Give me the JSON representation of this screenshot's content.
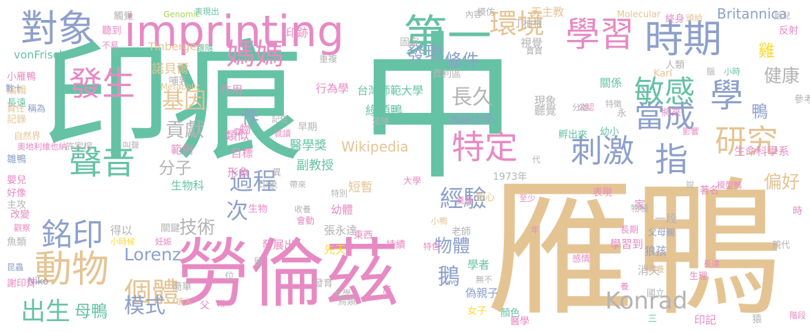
{
  "palette": {
    "green": "#66c2a5",
    "pink": "#e78ac3",
    "blue": "#8da0cb",
    "tan": "#e5c494",
    "gray": "#b3b3b3",
    "yellow": "#ffd92f",
    "lime": "#a6d854",
    "orange": "#fc8d62"
  },
  "words": [
    {
      "t": "印痕",
      "c": "green"
    },
    {
      "t": "中",
      "c": "green"
    },
    {
      "t": "雁鴨",
      "c": "tan"
    },
    {
      "t": "勞倫茲",
      "c": "pink"
    },
    {
      "t": "imprinting",
      "c": "pink"
    },
    {
      "t": "對象",
      "c": "blue"
    },
    {
      "t": "第一",
      "c": "green"
    },
    {
      "t": "學習",
      "c": "pink"
    },
    {
      "t": "時期",
      "c": "blue"
    },
    {
      "t": "環境",
      "c": "tan"
    },
    {
      "t": "發現",
      "c": "blue"
    },
    {
      "t": "媽媽",
      "c": "pink"
    },
    {
      "t": "條件",
      "c": "blue"
    },
    {
      "t": "發生",
      "c": "pink"
    },
    {
      "t": "特定",
      "c": "pink"
    },
    {
      "t": "敏感",
      "c": "green"
    },
    {
      "t": "學",
      "c": "blue"
    },
    {
      "t": "當成",
      "c": "blue"
    },
    {
      "t": "刺激",
      "c": "blue"
    },
    {
      "t": "指",
      "c": "blue"
    },
    {
      "t": "研究",
      "c": "tan"
    },
    {
      "t": "聲音",
      "c": "green"
    },
    {
      "t": "動物",
      "c": "tan"
    },
    {
      "t": "銘印",
      "c": "blue"
    },
    {
      "t": "過程",
      "c": "blue"
    },
    {
      "t": "經驗",
      "c": "blue"
    },
    {
      "t": "長久",
      "c": "gray"
    },
    {
      "t": "基因",
      "c": "tan"
    },
    {
      "t": "貢獻",
      "c": "gray"
    },
    {
      "t": "分子",
      "c": "gray"
    },
    {
      "t": "作",
      "c": "blue"
    },
    {
      "t": "技術",
      "c": "gray"
    },
    {
      "t": "次",
      "c": "blue"
    },
    {
      "t": "個體",
      "c": "tan"
    },
    {
      "t": "模式",
      "c": "blue"
    },
    {
      "t": "出生",
      "c": "green"
    },
    {
      "t": "母鴨",
      "c": "green"
    },
    {
      "t": "物體",
      "c": "blue"
    },
    {
      "t": "鵝",
      "c": "blue"
    },
    {
      "t": "Konrad",
      "c": "gray"
    },
    {
      "t": "Lorenz",
      "c": "blue"
    },
    {
      "t": "Britannica",
      "c": "blue"
    },
    {
      "t": "鴨",
      "c": "blue"
    },
    {
      "t": "健康",
      "c": "gray"
    },
    {
      "t": "雞",
      "c": "yellow"
    },
    {
      "t": "偏好",
      "c": "tan"
    },
    {
      "t": "生命科學系",
      "c": "pink"
    },
    {
      "t": "Wikipedia",
      "c": "tan"
    },
    {
      "t": "台灣師範大學",
      "c": "green"
    },
    {
      "t": "綠頭鴨",
      "c": "green"
    },
    {
      "t": "副教授",
      "c": "green"
    },
    {
      "t": "目標",
      "c": "pink"
    },
    {
      "t": "形象",
      "c": "pink"
    },
    {
      "t": "範例",
      "c": "pink"
    },
    {
      "t": "生物科",
      "c": "green"
    },
    {
      "t": "醫學獎",
      "c": "green"
    },
    {
      "t": "類似",
      "c": "pink"
    },
    {
      "t": "諾貝爾",
      "c": "tan"
    },
    {
      "t": "Tinbergen",
      "c": "tan"
    },
    {
      "t": "vonFrisch",
      "c": "green"
    },
    {
      "t": "Genomic",
      "c": "lime"
    },
    {
      "t": "Molecular",
      "c": "tan"
    },
    {
      "t": "Metabolic",
      "c": "tan"
    },
    {
      "t": "Karl",
      "c": "tan"
    },
    {
      "t": "Niko",
      "c": "blue"
    },
    {
      "t": "1973年",
      "c": "gray"
    },
    {
      "t": "天主教",
      "c": "tan"
    },
    {
      "t": "丁柏根",
      "c": "gray"
    },
    {
      "t": "模仿",
      "c": "gray"
    },
    {
      "t": "內容",
      "c": "gray"
    },
    {
      "t": "視覺",
      "c": "gray"
    },
    {
      "t": "寶寶",
      "c": "gray"
    },
    {
      "t": "固定",
      "c": "gray"
    },
    {
      "t": "印跡",
      "c": "pink"
    },
    {
      "t": "重複",
      "c": "gray"
    },
    {
      "t": "費利區",
      "c": "gray"
    },
    {
      "t": "行為學",
      "c": "pink"
    },
    {
      "t": "作用",
      "c": "pink"
    },
    {
      "t": "哺乳",
      "c": "gray"
    },
    {
      "t": "現象",
      "c": "gray"
    },
    {
      "t": "聽覺",
      "c": "gray"
    },
    {
      "t": "關係",
      "c": "green"
    },
    {
      "t": "公認",
      "c": "pink"
    },
    {
      "t": "特徵",
      "c": "gray"
    },
    {
      "t": "分離",
      "c": "gray"
    },
    {
      "t": "永",
      "c": "gray"
    },
    {
      "t": "高級中學",
      "c": "blue"
    },
    {
      "t": "孵出來",
      "c": "green"
    },
    {
      "t": "幼小",
      "c": "green"
    },
    {
      "t": "將來",
      "c": "pink"
    },
    {
      "t": "影響",
      "c": "pink"
    },
    {
      "t": "短暫",
      "c": "tan"
    },
    {
      "t": "幼體",
      "c": "pink"
    },
    {
      "t": "特別",
      "c": "gray"
    },
    {
      "t": "大學",
      "c": "pink"
    },
    {
      "t": "帶來",
      "c": "gray"
    },
    {
      "t": "奠基",
      "c": "pink"
    },
    {
      "t": "聖心",
      "c": "tan"
    },
    {
      "t": "至少",
      "c": "pink"
    },
    {
      "t": "張永達",
      "c": "gray"
    },
    {
      "t": "東西",
      "c": "pink"
    },
    {
      "t": "老師",
      "c": "gray"
    },
    {
      "t": "先天",
      "c": "yellow"
    },
    {
      "t": "持續",
      "c": "pink"
    },
    {
      "t": "特色",
      "c": "pink"
    },
    {
      "t": "學者",
      "c": "green"
    },
    {
      "t": "無不",
      "c": "gray"
    },
    {
      "t": "偽親子",
      "c": "blue"
    },
    {
      "t": "鳥類",
      "c": "gray"
    },
    {
      "t": "女子",
      "c": "yellow"
    },
    {
      "t": "狼孩",
      "c": "blue"
    },
    {
      "t": "消失",
      "c": "gray"
    },
    {
      "t": "國立",
      "c": "gray"
    },
    {
      "t": "學習到",
      "c": "pink"
    },
    {
      "t": "家",
      "c": "pink"
    },
    {
      "t": "一段",
      "c": "gray"
    },
    {
      "t": "物種",
      "c": "gray"
    },
    {
      "t": "表現",
      "c": "pink"
    },
    {
      "t": "長期",
      "c": "pink"
    },
    {
      "t": "感情",
      "c": "pink"
    },
    {
      "t": "父母親",
      "c": "blue"
    },
    {
      "t": "生理",
      "c": "pink"
    },
    {
      "t": "印記",
      "c": "pink"
    },
    {
      "t": "猿",
      "c": "gray"
    },
    {
      "t": "三",
      "c": "green"
    },
    {
      "t": "顏色",
      "c": "green"
    },
    {
      "t": "醫學",
      "c": "pink"
    },
    {
      "t": "著名",
      "c": "pink"
    },
    {
      "t": "說",
      "c": "gray"
    },
    {
      "t": "親代",
      "c": "gray"
    },
    {
      "t": "階段",
      "c": "pink"
    },
    {
      "t": "飼養",
      "c": "tan"
    },
    {
      "t": "長達",
      "c": "pink"
    },
    {
      "t": "終身",
      "c": "pink"
    },
    {
      "t": "頒給",
      "c": "tan"
    },
    {
      "t": "胎兒",
      "c": "gray"
    },
    {
      "t": "反射",
      "c": "pink"
    },
    {
      "t": "人類",
      "c": "gray"
    },
    {
      "t": "腦",
      "c": "gray"
    },
    {
      "t": "小時",
      "c": "green"
    },
    {
      "t": "參考",
      "c": "gray"
    },
    {
      "t": "觸覺",
      "c": "gray"
    },
    {
      "t": "表現出",
      "c": "green"
    },
    {
      "t": "聽到",
      "c": "pink"
    },
    {
      "t": "不易",
      "c": "pink"
    },
    {
      "t": "跟隨",
      "c": "green"
    },
    {
      "t": "小雁鴨",
      "c": "pink"
    },
    {
      "t": "編輯",
      "c": "tan"
    },
    {
      "t": "數十",
      "c": "blue"
    },
    {
      "t": "長遠",
      "c": "green"
    },
    {
      "t": "責任",
      "c": "tan"
    },
    {
      "t": "稱為",
      "c": "blue"
    },
    {
      "t": "記錄",
      "c": "tan"
    },
    {
      "t": "自然界",
      "c": "tan"
    },
    {
      "t": "奧地利維也納",
      "c": "pink"
    },
    {
      "t": "雛鴨",
      "c": "blue"
    },
    {
      "t": "許家榕",
      "c": "gray"
    },
    {
      "t": "嬰兒",
      "c": "pink"
    },
    {
      "t": "好像",
      "c": "pink"
    },
    {
      "t": "主攻",
      "c": "gray"
    },
    {
      "t": "改變",
      "c": "pink"
    },
    {
      "t": "觀察",
      "c": "pink"
    },
    {
      "t": "魚類",
      "c": "gray"
    },
    {
      "t": "昆蟲",
      "c": "blue"
    },
    {
      "t": "謝印齊",
      "c": "pink"
    },
    {
      "t": "得以",
      "c": "gray"
    },
    {
      "t": "小時候",
      "c": "yellow"
    },
    {
      "t": "妊娠",
      "c": "pink"
    },
    {
      "t": "簡單",
      "c": "gray"
    },
    {
      "t": "植入",
      "c": "tan"
    },
    {
      "t": "父",
      "c": "pink"
    },
    {
      "t": "常",
      "c": "pink"
    },
    {
      "t": "位",
      "c": "gray"
    },
    {
      "t": "留",
      "c": "gray"
    },
    {
      "t": "發展出",
      "c": "pink"
    },
    {
      "t": "會動",
      "c": "pink"
    },
    {
      "t": "收養",
      "c": "gray"
    },
    {
      "t": "生物",
      "c": "pink"
    },
    {
      "t": "叫聲",
      "c": "gray"
    },
    {
      "t": "關鍵",
      "c": "gray"
    },
    {
      "t": "印象",
      "c": "gray"
    },
    {
      "t": "異",
      "c": "gray"
    },
    {
      "t": "記住",
      "c": "gray"
    },
    {
      "t": "早期",
      "c": "gray"
    },
    {
      "t": "就讀",
      "c": "pink"
    },
    {
      "t": "物",
      "c": "pink"
    },
    {
      "t": "群",
      "c": "pink"
    },
    {
      "t": "追隨",
      "c": "gray"
    },
    {
      "t": "發育",
      "c": "gray"
    },
    {
      "t": "化學",
      "c": "gray"
    },
    {
      "t": "產",
      "c": "pink"
    },
    {
      "t": "代",
      "c": "gray"
    },
    {
      "t": "養",
      "c": "pink"
    },
    {
      "t": "時",
      "c": "pink"
    },
    {
      "t": "模型鴨",
      "c": "pink"
    },
    {
      "t": "年",
      "c": "pink"
    },
    {
      "t": "小鴨",
      "c": "tan"
    }
  ]
}
